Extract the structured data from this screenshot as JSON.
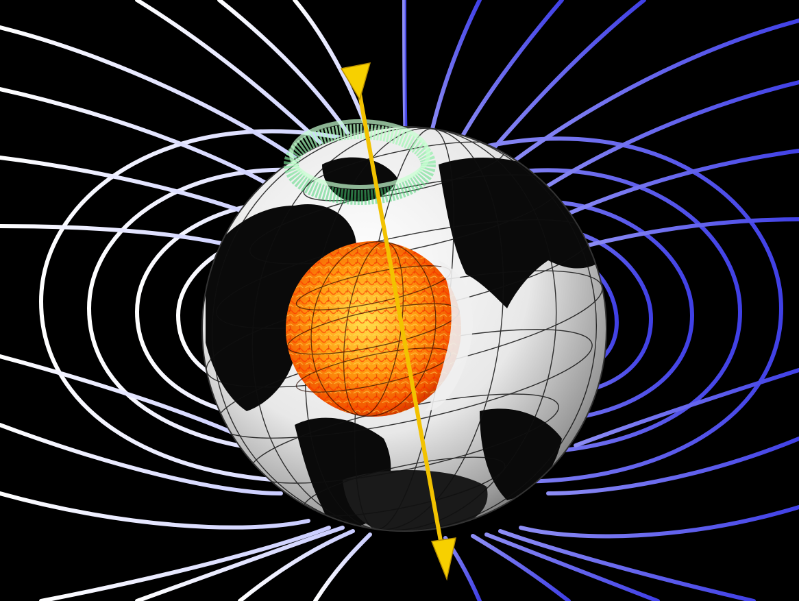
{
  "scene": {
    "subject": "earth-magnetic-field-illustration",
    "colors": {
      "background": "#000000",
      "field_line_left": "#e6e8ff",
      "field_line_right": "#5b5bf0",
      "globe": "#f2f2f2",
      "continent": "#0a0a0a",
      "core_inner": "#ffd23a",
      "core_outer": "#ff5a00",
      "axis": "#f2c200",
      "aurora": "#8cff9e"
    },
    "icons": [
      "magnetic-axis-arrow-icon",
      "aurora-ring-icon",
      "globe-icon",
      "core-icon"
    ]
  }
}
